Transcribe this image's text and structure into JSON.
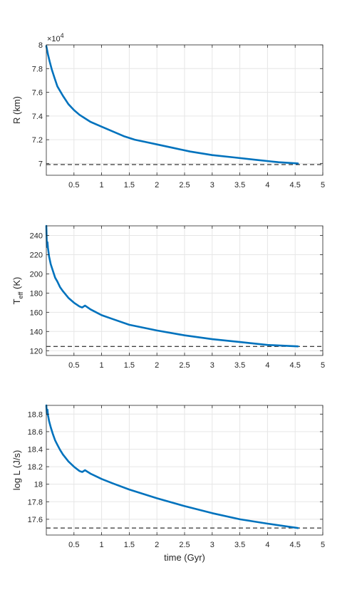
{
  "figure": {
    "xlabel": "time (Gyr)"
  },
  "colors": {
    "series": "#0072BD",
    "reference": "#000000",
    "grid": "#e6e6e6",
    "axis": "#262626"
  },
  "chart_data": [
    {
      "type": "line",
      "ylabel": "R (km)",
      "exponent_label": "×10",
      "exponent": "4",
      "xlim": [
        0,
        5
      ],
      "ylim": [
        6.9,
        8.0
      ],
      "x_ticks": [
        "0.5",
        "1",
        "1.5",
        "2",
        "2.5",
        "3",
        "3.5",
        "4",
        "4.5",
        "5"
      ],
      "y_ticks": [
        "7",
        "7.2",
        "7.4",
        "7.6",
        "7.8",
        "8"
      ],
      "grid": true,
      "series": [
        {
          "style": "solid",
          "x": [
            0.0,
            0.03,
            0.06,
            0.1,
            0.15,
            0.2,
            0.3,
            0.4,
            0.5,
            0.6,
            0.7,
            0.8,
            1.0,
            1.2,
            1.4,
            1.6,
            1.8,
            2.0,
            2.3,
            2.6,
            3.0,
            3.4,
            3.8,
            4.2,
            4.55
          ],
          "y": [
            7.99,
            7.92,
            7.86,
            7.79,
            7.72,
            7.65,
            7.57,
            7.5,
            7.45,
            7.41,
            7.38,
            7.35,
            7.31,
            7.27,
            7.23,
            7.2,
            7.18,
            7.16,
            7.13,
            7.1,
            7.07,
            7.05,
            7.03,
            7.01,
            7.0
          ]
        }
      ],
      "reference_line": {
        "style": "dashed",
        "y": 6.99,
        "x": [
          0,
          5
        ]
      }
    },
    {
      "type": "line",
      "ylabel": "T",
      "ylabel_sub": "eff",
      "ylabel_unit": " (K)",
      "xlim": [
        0,
        5
      ],
      "ylim": [
        115,
        250
      ],
      "x_ticks": [
        "0.5",
        "1",
        "1.5",
        "2",
        "2.5",
        "3",
        "3.5",
        "4",
        "4.5",
        "5"
      ],
      "y_ticks": [
        "120",
        "140",
        "160",
        "180",
        "200",
        "220",
        "240"
      ],
      "grid": true,
      "series": [
        {
          "style": "solid",
          "x": [
            0.0,
            0.01,
            0.02,
            0.03,
            0.05,
            0.08,
            0.12,
            0.16,
            0.2,
            0.25,
            0.3,
            0.4,
            0.5,
            0.6,
            0.65,
            0.7,
            0.8,
            0.9,
            1.0,
            1.2,
            1.5,
            2.0,
            2.5,
            3.0,
            3.5,
            4.0,
            4.55
          ],
          "y": [
            250,
            228,
            233,
            227,
            218,
            210,
            203,
            196,
            192,
            186,
            182,
            175,
            170,
            166,
            165,
            167,
            163,
            160,
            157,
            153,
            147,
            141,
            136,
            132,
            129,
            126,
            124.5
          ]
        }
      ],
      "reference_line": {
        "style": "dashed",
        "y": 124.5,
        "x": [
          0,
          5
        ]
      }
    },
    {
      "type": "line",
      "ylabel": "log L (J/s)",
      "xlabel": "time (Gyr)",
      "xlim": [
        0,
        5
      ],
      "ylim": [
        17.42,
        18.9
      ],
      "x_ticks": [
        "0.5",
        "1",
        "1.5",
        "2",
        "2.5",
        "3",
        "3.5",
        "4",
        "4.5",
        "5"
      ],
      "y_ticks": [
        "17.6",
        "17.8",
        "18",
        "18.2",
        "18.4",
        "18.6",
        "18.8"
      ],
      "grid": true,
      "series": [
        {
          "style": "solid",
          "x": [
            0.0,
            0.01,
            0.02,
            0.03,
            0.05,
            0.08,
            0.12,
            0.16,
            0.2,
            0.25,
            0.3,
            0.4,
            0.5,
            0.6,
            0.65,
            0.7,
            0.8,
            0.9,
            1.0,
            1.2,
            1.5,
            2.0,
            2.5,
            3.0,
            3.5,
            4.0,
            4.55
          ],
          "y": [
            18.9,
            18.8,
            18.85,
            18.79,
            18.72,
            18.65,
            18.57,
            18.5,
            18.45,
            18.39,
            18.34,
            18.26,
            18.2,
            18.15,
            18.14,
            18.16,
            18.12,
            18.09,
            18.06,
            18.01,
            17.94,
            17.84,
            17.75,
            17.67,
            17.6,
            17.55,
            17.5
          ]
        }
      ],
      "reference_line": {
        "style": "dashed",
        "y": 17.5,
        "x": [
          0,
          5
        ]
      }
    }
  ]
}
